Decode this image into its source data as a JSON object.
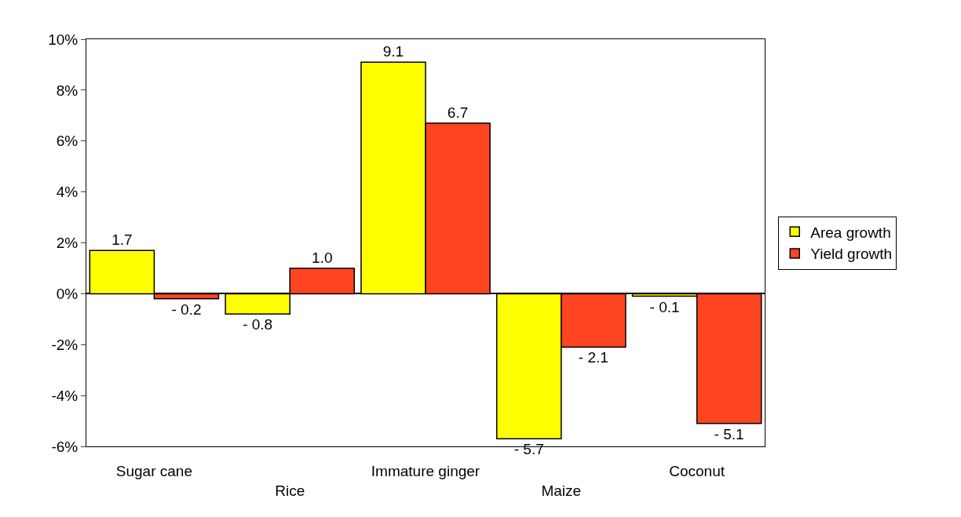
{
  "chart_data": {
    "type": "bar",
    "categories": [
      "Sugar cane",
      "Rice",
      "Immature ginger",
      "Maize",
      "Coconut"
    ],
    "series": [
      {
        "name": "Area growth",
        "color": "#ffff00",
        "values": [
          1.7,
          -0.8,
          9.1,
          -5.7,
          -0.1
        ],
        "value_labels": [
          "1.7",
          "- 0.8",
          "9.1",
          "- 5.7",
          "- 0.1"
        ]
      },
      {
        "name": "Yield growth",
        "color": "#ff4422",
        "values": [
          -0.2,
          1.0,
          6.7,
          -2.1,
          -5.1
        ],
        "value_labels": [
          "- 0.2",
          "1.0",
          "6.7",
          "- 2.1",
          "- 5.1"
        ]
      }
    ],
    "ylim": [
      -6,
      10
    ],
    "yticks": [
      {
        "value": -6,
        "label": "-6%"
      },
      {
        "value": -4,
        "label": "-4%"
      },
      {
        "value": -2,
        "label": "-2%"
      },
      {
        "value": 0,
        "label": "0%"
      },
      {
        "value": 2,
        "label": "2%"
      },
      {
        "value": 4,
        "label": "4%"
      },
      {
        "value": 6,
        "label": "6%"
      },
      {
        "value": 8,
        "label": "8%"
      },
      {
        "value": 10,
        "label": "10%"
      }
    ],
    "legend": "right"
  }
}
